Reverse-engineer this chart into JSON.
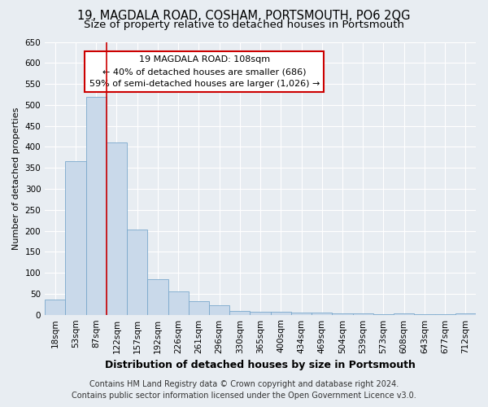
{
  "title": "19, MAGDALA ROAD, COSHAM, PORTSMOUTH, PO6 2QG",
  "subtitle": "Size of property relative to detached houses in Portsmouth",
  "xlabel": "Distribution of detached houses by size in Portsmouth",
  "ylabel": "Number of detached properties",
  "categories": [
    "18sqm",
    "53sqm",
    "87sqm",
    "122sqm",
    "157sqm",
    "192sqm",
    "226sqm",
    "261sqm",
    "296sqm",
    "330sqm",
    "365sqm",
    "400sqm",
    "434sqm",
    "469sqm",
    "504sqm",
    "539sqm",
    "573sqm",
    "608sqm",
    "643sqm",
    "677sqm",
    "712sqm"
  ],
  "values": [
    37,
    365,
    520,
    410,
    203,
    85,
    55,
    33,
    22,
    10,
    7,
    8,
    5,
    5,
    4,
    4,
    1,
    4,
    1,
    1,
    3
  ],
  "bar_color": "#c9d9ea",
  "bar_edge_color": "#7aa8cc",
  "annotation_text_line1": "19 MAGDALA ROAD: 108sqm",
  "annotation_text_line2": "← 40% of detached houses are smaller (686)",
  "annotation_text_line3": "59% of semi-detached houses are larger (1,026) →",
  "annotation_box_facecolor": "#ffffff",
  "annotation_box_edgecolor": "#cc0000",
  "vline_color": "#cc0000",
  "vline_x": 2.5,
  "ylim": [
    0,
    650
  ],
  "yticks": [
    0,
    50,
    100,
    150,
    200,
    250,
    300,
    350,
    400,
    450,
    500,
    550,
    600,
    650
  ],
  "footer_line1": "Contains HM Land Registry data © Crown copyright and database right 2024.",
  "footer_line2": "Contains public sector information licensed under the Open Government Licence v3.0.",
  "bg_color": "#e8edf2",
  "plot_bg_color": "#e8edf2",
  "grid_color": "#ffffff",
  "title_fontsize": 10.5,
  "subtitle_fontsize": 9.5,
  "xlabel_fontsize": 9,
  "ylabel_fontsize": 8,
  "tick_fontsize": 7.5,
  "annot_fontsize": 8,
  "footer_fontsize": 7
}
